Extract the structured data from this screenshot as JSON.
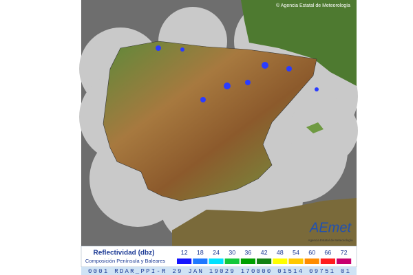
{
  "header": {
    "credit": "© Agencia Estatal de Meteorología"
  },
  "logo": {
    "name": "AEmet",
    "subtitle": "Agencia Estatal de Meteorología"
  },
  "legend": {
    "title": "Reflectividad (dbz)",
    "subtitle": "Composición Península y Baleares",
    "values": [
      12,
      18,
      24,
      30,
      36,
      42,
      48,
      54,
      60,
      66,
      72
    ],
    "colors": [
      "#1414ff",
      "#1e78ff",
      "#00e1ff",
      "#14c83c",
      "#00a000",
      "#148214",
      "#ffff00",
      "#ffc800",
      "#ff8c00",
      "#ff1e1e",
      "#c8006e"
    ]
  },
  "status": "0001 RDAR_PPI-R 29 JAN 19029 170000 01514 09751 01"
}
